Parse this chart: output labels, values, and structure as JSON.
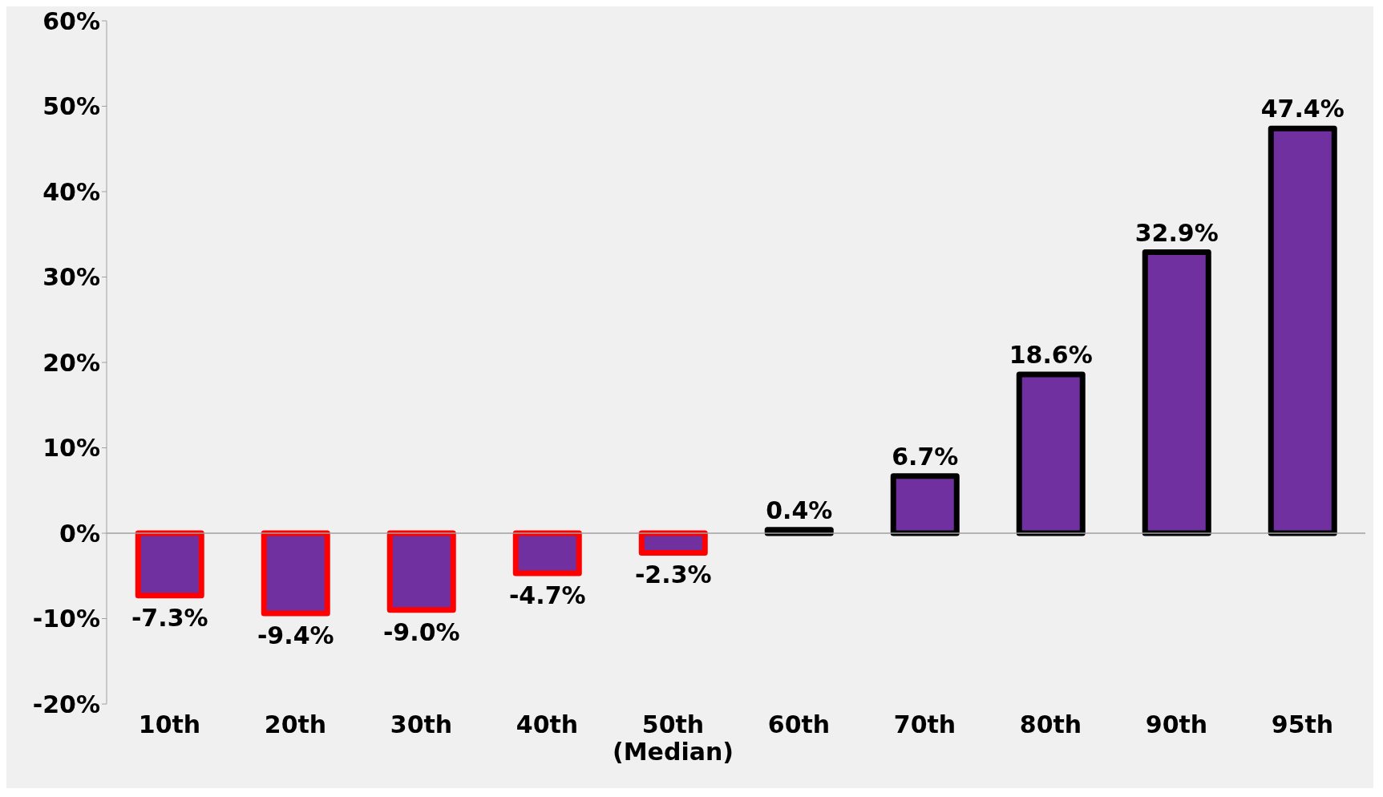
{
  "chart_data": {
    "type": "bar",
    "categories": [
      "10th",
      "20th",
      "30th",
      "40th",
      "50th\n(Median)",
      "60th",
      "70th",
      "80th",
      "90th",
      "95th"
    ],
    "values": [
      -7.3,
      -9.4,
      -9.0,
      -4.7,
      -2.3,
      0.4,
      6.7,
      18.6,
      32.9,
      47.4
    ],
    "value_labels": [
      "-7.3%",
      "-9.4%",
      "-9.0%",
      "-4.7%",
      "-2.3%",
      "0.4%",
      "6.7%",
      "18.6%",
      "32.9%",
      "47.4%"
    ],
    "color": "#7030a0",
    "ylim": [
      -20,
      60
    ],
    "yticks": [
      {
        "value": -20,
        "label": "-20%"
      },
      {
        "value": -10,
        "label": "-10%"
      },
      {
        "value": 0,
        "label": "0%"
      },
      {
        "value": 10,
        "label": "10%"
      },
      {
        "value": 20,
        "label": "20%"
      },
      {
        "value": 30,
        "label": "30%"
      },
      {
        "value": 40,
        "label": "40%"
      },
      {
        "value": 50,
        "label": "50%"
      },
      {
        "value": 60,
        "label": "60%"
      }
    ],
    "legend": false
  }
}
